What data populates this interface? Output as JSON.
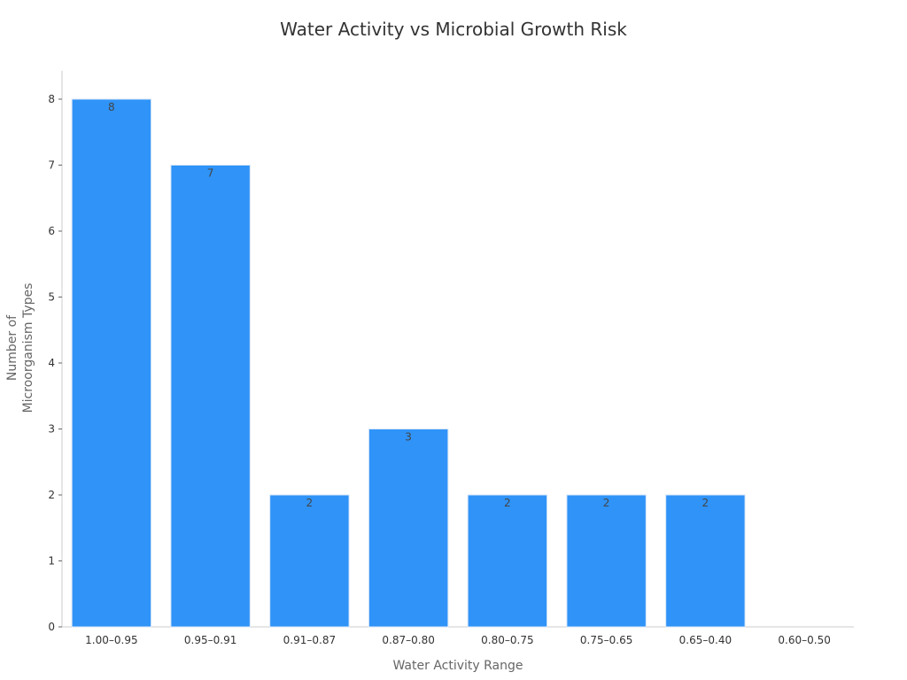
{
  "chart_data": {
    "type": "bar",
    "title": "Water Activity vs Microbial Growth Risk",
    "xlabel": "Water Activity Range",
    "ylabel": [
      "Number of",
      "Microorganism Types"
    ],
    "categories": [
      "1.00–0.95",
      "0.95–0.91",
      "0.91–0.87",
      "0.87–0.80",
      "0.80–0.75",
      "0.75–0.65",
      "0.65–0.40",
      "0.60–0.50"
    ],
    "values": [
      8,
      7,
      2,
      3,
      2,
      2,
      2,
      0
    ],
    "data_labels": [
      "8",
      "7",
      "2",
      "3",
      "2",
      "2",
      "2",
      ""
    ],
    "yticks": [
      0,
      1,
      2,
      3,
      4,
      5,
      6,
      7,
      8
    ],
    "ylim": [
      0,
      8.4
    ],
    "grid": false,
    "legend": "none",
    "bar_color": "#2f93f8",
    "bar_edge_color": "#d6e6f7"
  }
}
